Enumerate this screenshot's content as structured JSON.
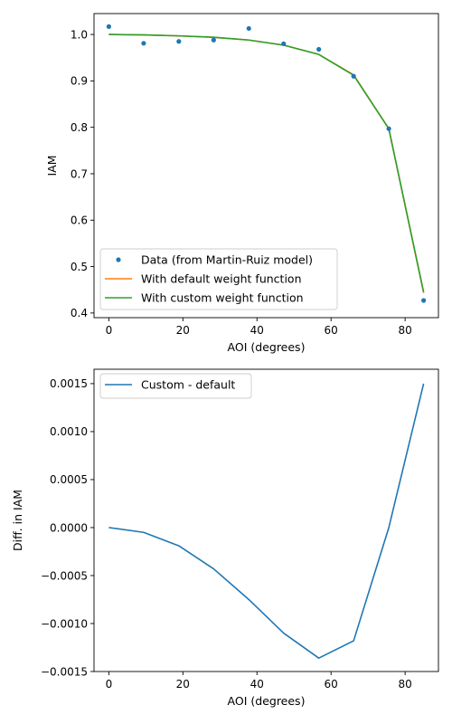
{
  "colors": {
    "data": "#1f77b4",
    "default_fit": "#ff7f0e",
    "custom_fit": "#2ca02c",
    "difference": "#1f77b4",
    "axes": "#000000",
    "legend_border": "#cccccc"
  },
  "chart_data": [
    {
      "type": "line",
      "xlabel": "AOI (degrees)",
      "ylabel": "IAM",
      "xlim": [
        -4,
        89
      ],
      "ylim": [
        0.39,
        1.045
      ],
      "xticks": [
        0,
        20,
        40,
        60,
        80
      ],
      "xtick_labels": [
        "0",
        "20",
        "40",
        "60",
        "80"
      ],
      "yticks": [
        0.4,
        0.5,
        0.6,
        0.7,
        0.8,
        0.9,
        1.0
      ],
      "ytick_labels": [
        "0.4",
        "0.5",
        "0.6",
        "0.7",
        "0.8",
        "0.9",
        "1.0"
      ],
      "grid": false,
      "legend_position": "lower-left",
      "series": [
        {
          "name": "Data (from Martin-Ruiz model)",
          "style": "points",
          "x": [
            0,
            9.4,
            18.9,
            28.3,
            37.8,
            47.2,
            56.7,
            66.1,
            75.6,
            85.0
          ],
          "y": [
            1.017,
            0.981,
            0.985,
            0.988,
            1.013,
            0.98,
            0.968,
            0.91,
            0.797,
            0.427
          ]
        },
        {
          "name": "With default weight function",
          "style": "line",
          "x": [
            0,
            9.4,
            18.9,
            28.3,
            37.8,
            47.2,
            56.7,
            66.1,
            75.6,
            85.0
          ],
          "y": [
            1.0,
            0.999,
            0.997,
            0.994,
            0.988,
            0.977,
            0.957,
            0.913,
            0.797,
            0.4435
          ]
        },
        {
          "name": "With custom weight function",
          "style": "line",
          "x": [
            0,
            9.4,
            18.9,
            28.3,
            37.8,
            47.2,
            56.7,
            66.1,
            75.6,
            85.0
          ],
          "y": [
            1.0,
            0.999,
            0.997,
            0.994,
            0.988,
            0.977,
            0.957,
            0.912,
            0.797,
            0.445
          ]
        }
      ]
    },
    {
      "type": "line",
      "xlabel": "AOI (degrees)",
      "ylabel": "Diff. in IAM",
      "xlim": [
        -4,
        89
      ],
      "ylim": [
        -0.0015,
        0.00165
      ],
      "xticks": [
        0,
        20,
        40,
        60,
        80
      ],
      "xtick_labels": [
        "0",
        "20",
        "40",
        "60",
        "80"
      ],
      "yticks": [
        -0.0015,
        -0.001,
        -0.0005,
        0.0,
        0.0005,
        0.001,
        0.0015
      ],
      "ytick_labels": [
        "−0.0015",
        "−0.0010",
        "−0.0005",
        "0.0000",
        "0.0005",
        "0.0010",
        "0.0015"
      ],
      "grid": false,
      "legend_position": "upper-left",
      "series": [
        {
          "name": "Custom - default",
          "style": "line",
          "x": [
            0,
            9.4,
            18.9,
            28.3,
            37.8,
            47.2,
            56.7,
            66.1,
            75.6,
            85.0
          ],
          "y": [
            0.0,
            -5e-05,
            -0.00019,
            -0.00043,
            -0.00075,
            -0.0011,
            -0.00136,
            -0.00118,
            0.0,
            0.0015
          ]
        }
      ]
    }
  ]
}
